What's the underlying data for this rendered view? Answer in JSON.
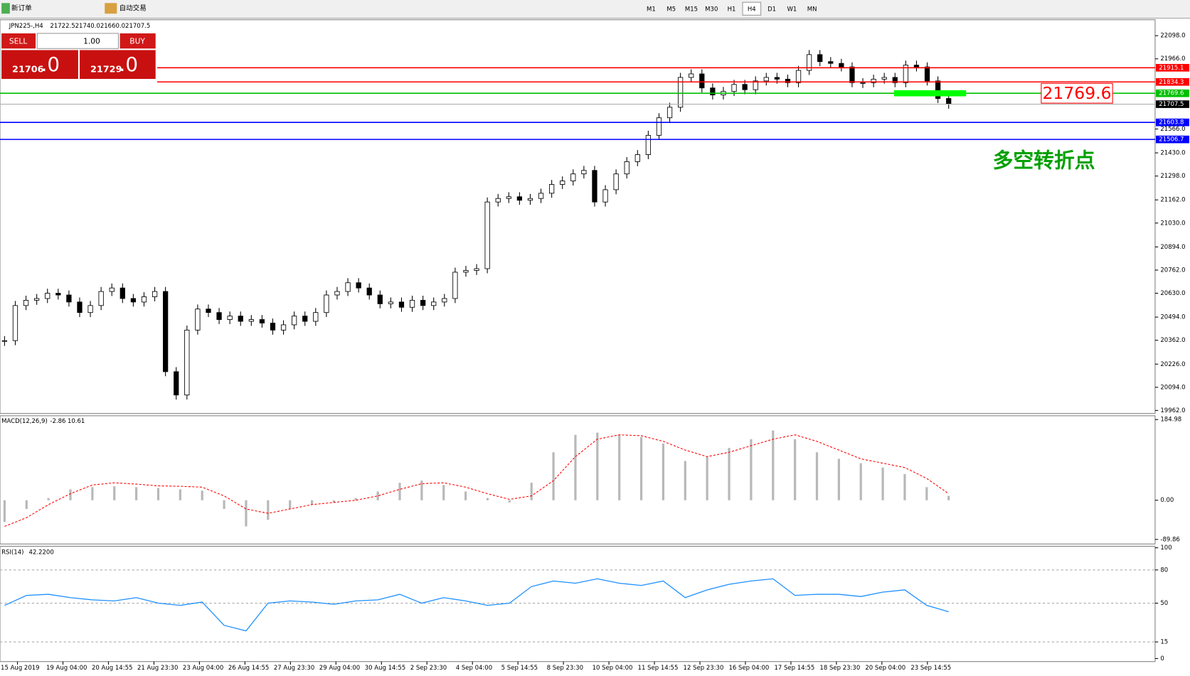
{
  "toolbar": {
    "new_order": "新订单",
    "auto_trading": "自动交易",
    "timeframes": [
      "M1",
      "M5",
      "M15",
      "M30",
      "H1",
      "H4",
      "D1",
      "W1",
      "MN"
    ],
    "active_timeframe": "H4"
  },
  "order_panel": {
    "sell": "SELL",
    "buy": "BUY",
    "lot": {
      "value": 1,
      "label": "1.00"
    },
    "sell_price": {
      "main": "21706",
      "frac": ".0"
    },
    "buy_price": {
      "main": "21729",
      "frac": ".0"
    }
  },
  "chart_data": [
    {
      "type": "candlestick",
      "symbol": "JPN225-,H4",
      "ohlc": [
        21722.5,
        {
          "value": 21740,
          "label": "21740.0"
        },
        {
          "value": 21660,
          "label": "21660.0"
        },
        21707.5
      ],
      "ylim": [
        19962,
        22098
      ],
      "yticks": [
        {
          "value": 22098,
          "label": "22098.0"
        },
        {
          "value": 21966,
          "label": "21966.0"
        },
        {
          "value": 21566,
          "label": "21566.0"
        },
        {
          "value": 21430,
          "label": "21430.0"
        },
        {
          "value": 21298,
          "label": "21298.0"
        },
        {
          "value": 21162,
          "label": "21162.0"
        },
        {
          "value": 21030,
          "label": "21030.0"
        },
        {
          "value": 20894,
          "label": "20894.0"
        },
        {
          "value": 20762,
          "label": "20762.0"
        },
        {
          "value": 20630,
          "label": "20630.0"
        },
        {
          "value": 20494,
          "label": "20494.0"
        },
        {
          "value": 20362,
          "label": "20362.0"
        },
        {
          "value": 20226,
          "label": "20226.0"
        },
        {
          "value": 20094,
          "label": "20094.0"
        },
        {
          "value": 19962,
          "label": "19962.0"
        }
      ],
      "closes": [
        20360,
        20560,
        20590,
        20600,
        20630,
        20620,
        20580,
        20520,
        20560,
        20640,
        20660,
        20600,
        20580,
        20610,
        20640,
        20183,
        20050,
        20420,
        20540,
        20520,
        20480,
        20500,
        20470,
        20480,
        20460,
        20420,
        20450,
        20500,
        20470,
        20520,
        20620,
        20640,
        20690,
        20660,
        20620,
        20570,
        20580,
        20550,
        20590,
        20560,
        20580,
        20600,
        20750,
        20760,
        20770,
        21150,
        21170,
        21180,
        21160,
        21170,
        21200,
        21250,
        21270,
        21310,
        21330,
        21150,
        21220,
        21310,
        21380,
        21420,
        21530,
        21630,
        21690,
        21860,
        21880,
        21800,
        21760,
        21780,
        21820,
        21790,
        21840,
        21860,
        21850,
        21830,
        21900,
        21990,
        21950,
        21940,
        21920,
        21830,
        21830,
        21850,
        21860,
        21830,
        21930,
        21920,
        21840,
        21740,
        21707.5
      ],
      "levels": [
        {
          "value": 21915.1,
          "color": "#ff0000"
        },
        {
          "value": 21834.3,
          "color": "#ff0000"
        },
        {
          "value": 21769.6,
          "color": "#00c000"
        },
        {
          "value": 21707.5,
          "color": "#000000"
        },
        {
          "value": 21603.8,
          "color": "#0000ff"
        },
        {
          "value": 21506.7,
          "color": "#0000ff"
        }
      ],
      "marker": {
        "value": 21769.6,
        "color": "#ff0000"
      },
      "annotation": "多空转折点"
    },
    {
      "type": "macd",
      "name": "MACD(12,26,9)",
      "main": -2.86,
      "signal_value": 10.61,
      "ylim": [
        -89.86,
        184.98
      ],
      "yticks": [
        184.98,
        {
          "value": 0,
          "label": "0.00"
        },
        -89.86
      ],
      "histogram": [
        -50,
        -20,
        5,
        25,
        30,
        32,
        30,
        28,
        25,
        22,
        -20,
        -60,
        -45,
        -20,
        -10,
        -5,
        5,
        20,
        40,
        45,
        35,
        20,
        5,
        -5,
        40,
        110,
        150,
        155,
        150,
        145,
        130,
        90,
        100,
        120,
        140,
        160,
        140,
        110,
        95,
        85,
        75,
        60,
        30,
        10
      ],
      "signal": [
        -60,
        -40,
        -10,
        15,
        35,
        40,
        37,
        33,
        32,
        30,
        10,
        -20,
        -30,
        -20,
        -10,
        -5,
        0,
        10,
        25,
        38,
        40,
        30,
        15,
        2,
        10,
        45,
        100,
        140,
        150,
        148,
        135,
        115,
        100,
        110,
        125,
        140,
        150,
        135,
        115,
        95,
        85,
        75,
        50,
        15
      ]
    },
    {
      "type": "rsi",
      "name": "RSI(14)",
      "current": {
        "value": 42.22,
        "label": "42.2200"
      },
      "ylim": [
        0,
        100
      ],
      "yticks": [
        100,
        80,
        50,
        15,
        0
      ],
      "levels": [
        80,
        50,
        15
      ],
      "values": [
        48,
        57,
        58,
        55,
        53,
        52,
        55,
        50,
        48,
        51,
        30,
        25,
        50,
        52,
        51,
        49,
        52,
        53,
        58,
        50,
        55,
        52,
        48,
        50,
        65,
        70,
        68,
        72,
        68,
        66,
        70,
        55,
        62,
        67,
        70,
        72,
        57,
        58,
        58,
        56,
        60,
        62,
        48,
        42.22
      ]
    }
  ],
  "x_axis": {
    "labels": [
      "15 Aug 2019",
      "19 Aug 04:00",
      "20 Aug 14:55",
      "21 Aug 23:30",
      "23 Aug 04:00",
      "26 Aug 14:55",
      "27 Aug 23:30",
      "29 Aug 04:00",
      "30 Aug 14:55",
      "2 Sep 23:30",
      "4 Sep 04:00",
      "5 Sep 14:55",
      "8 Sep 23:30",
      "10 Sep 04:00",
      "11 Sep 14:55",
      "12 Sep 23:30",
      "16 Sep 04:00",
      "17 Sep 14:55",
      "18 Sep 23:30",
      "20 Sep 04:00",
      "23 Sep 14:55"
    ]
  }
}
